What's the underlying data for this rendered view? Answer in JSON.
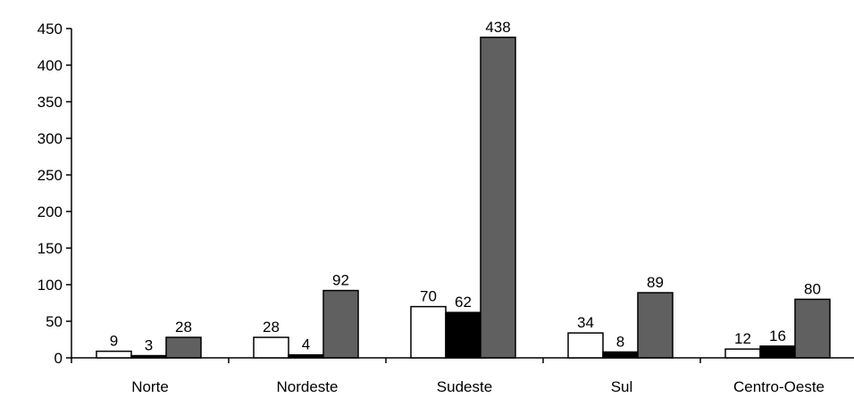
{
  "chart_data": {
    "type": "bar",
    "categories": [
      "Norte",
      "Nordeste",
      "Sudeste",
      "Sul",
      "Centro-Oeste"
    ],
    "series": [
      {
        "values": [
          9,
          28,
          70,
          34,
          12
        ],
        "color": "#ffffff"
      },
      {
        "values": [
          3,
          4,
          62,
          8,
          16
        ],
        "color": "#000000"
      },
      {
        "values": [
          28,
          92,
          438,
          89,
          80
        ],
        "color": "#606060"
      }
    ],
    "ylim": [
      0,
      450
    ],
    "yticks": [
      0,
      50,
      100,
      150,
      200,
      250,
      300,
      350,
      400,
      450
    ],
    "grid": false,
    "data_labels": true
  }
}
